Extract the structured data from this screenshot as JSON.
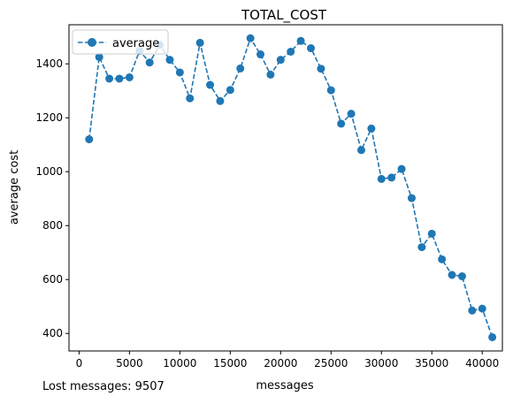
{
  "chart_data": {
    "type": "line",
    "title": "TOTAL_COST",
    "xlabel": "messages",
    "ylabel": "average cost",
    "xlim": [
      -1000,
      42000
    ],
    "ylim": [
      335,
      1545
    ],
    "x_ticks": [
      0,
      5000,
      10000,
      15000,
      20000,
      25000,
      30000,
      35000,
      40000
    ],
    "y_ticks": [
      400,
      600,
      800,
      1000,
      1200,
      1400
    ],
    "legend_position": "top-left",
    "grid": false,
    "series": [
      {
        "name": "average",
        "color": "#1f77b4",
        "line_style": "dashed",
        "marker": "circle",
        "x": [
          1000,
          2000,
          3000,
          4000,
          5000,
          6000,
          7000,
          8000,
          9000,
          10000,
          11000,
          12000,
          13000,
          14000,
          15000,
          16000,
          17000,
          18000,
          19000,
          20000,
          21000,
          22000,
          23000,
          24000,
          25000,
          26000,
          27000,
          28000,
          29000,
          30000,
          31000,
          32000,
          33000,
          34000,
          35000,
          36000,
          37000,
          38000,
          39000,
          40000,
          41000
        ],
        "y": [
          1120,
          1425,
          1345,
          1345,
          1350,
          1448,
          1405,
          1470,
          1415,
          1368,
          1272,
          1478,
          1322,
          1262,
          1303,
          1383,
          1495,
          1435,
          1360,
          1415,
          1445,
          1485,
          1458,
          1382,
          1302,
          1178,
          1215,
          1080,
          1160,
          973,
          978,
          1010,
          902,
          720,
          770,
          675,
          617,
          612,
          485,
          492,
          386
        ]
      }
    ]
  },
  "footnote": "Lost messages: 9507"
}
